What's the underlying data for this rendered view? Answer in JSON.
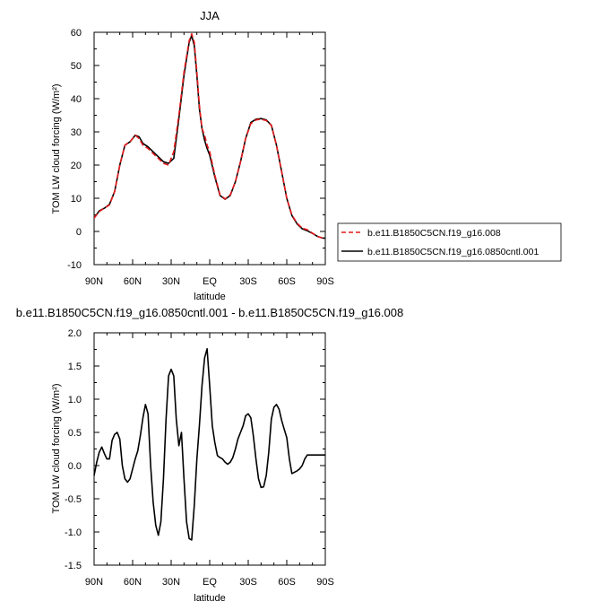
{
  "chart_data": [
    {
      "type": "line",
      "title": "JJA",
      "xlabel": "latitude",
      "ylabel": "TOM LW cloud forcing (W/m²)",
      "ylim": [
        -10,
        60
      ],
      "xlim": [
        90,
        -90
      ],
      "yticks": [
        "-10",
        "0",
        "10",
        "20",
        "30",
        "40",
        "50",
        "60"
      ],
      "xticks": [
        {
          "value": 90,
          "label": "90N"
        },
        {
          "value": 60,
          "label": "60N"
        },
        {
          "value": 30,
          "label": "30N"
        },
        {
          "value": 0,
          "label": "EQ"
        },
        {
          "value": -30,
          "label": "30S"
        },
        {
          "value": -60,
          "label": "60S"
        },
        {
          "value": -90,
          "label": "90S"
        }
      ],
      "legend_position": "right",
      "series": [
        {
          "name": "b.e11.B1850C5CN.f19_g16.008",
          "color": "#e41a1c",
          "dash": "dashed",
          "x": [
            90,
            86,
            82,
            78,
            74,
            70,
            66,
            62,
            58,
            55,
            52,
            48,
            44,
            40,
            36,
            32,
            28,
            24,
            20,
            16,
            14,
            12,
            10,
            8,
            6,
            4,
            2,
            0,
            -4,
            -8,
            -12,
            -16,
            -20,
            -24,
            -28,
            -32,
            -36,
            -40,
            -44,
            -48,
            -52,
            -56,
            -60,
            -64,
            -68,
            -72,
            -76,
            -80,
            -84,
            -88,
            -90
          ],
          "y": [
            4,
            6,
            7,
            8,
            12,
            20,
            26,
            27,
            29,
            28,
            26,
            25,
            23.5,
            22,
            20.5,
            20,
            24,
            35,
            48,
            57.5,
            59.5,
            57,
            48,
            38,
            31,
            29,
            26,
            24,
            17,
            11,
            9.8,
            11,
            15,
            21,
            28,
            32.5,
            33.6,
            33.8,
            33.4,
            32,
            26,
            18,
            10,
            5,
            2.5,
            1,
            0.5,
            -0.5,
            -1.5,
            -2,
            -2
          ]
        },
        {
          "name": "b.e11.B1850C5CN.f19_g16.0850cntl.001",
          "color": "#000000",
          "dash": "solid",
          "x": [
            90,
            86,
            82,
            78,
            74,
            70,
            66,
            62,
            58,
            55,
            52,
            48,
            44,
            40,
            36,
            32,
            28,
            24,
            20,
            16,
            14,
            12,
            10,
            8,
            6,
            4,
            2,
            0,
            -4,
            -8,
            -12,
            -16,
            -20,
            -24,
            -28,
            -32,
            -36,
            -40,
            -44,
            -48,
            -52,
            -56,
            -60,
            -64,
            -68,
            -72,
            -76,
            -80,
            -84,
            -88,
            -90
          ],
          "y": [
            4,
            6.2,
            7,
            8.2,
            12,
            20,
            26,
            27,
            29,
            28.5,
            26.5,
            25.5,
            24,
            22.5,
            21,
            20.5,
            22,
            34,
            47,
            57,
            59,
            56,
            47,
            37,
            31,
            27.5,
            25,
            23,
            16.5,
            10.8,
            9.7,
            10.8,
            15,
            21,
            28,
            32.8,
            33.8,
            34,
            33.6,
            32,
            26,
            18,
            10,
            4.8,
            2.3,
            0.8,
            0.2,
            -0.6,
            -1.5,
            -2,
            -2
          ]
        }
      ]
    },
    {
      "type": "line",
      "title": "b.e11.B1850C5CN.f19_g16.0850cntl.001 - b.e11.B1850C5CN.f19_g16.008",
      "xlabel": "latitude",
      "ylabel": "TOM LW cloud forcing (W/m²)",
      "ylim": [
        -1.5,
        2.0
      ],
      "xlim": [
        90,
        -90
      ],
      "yticks": [
        "-1.5",
        "-1.0",
        "-0.5",
        "0.0",
        "0.5",
        "1.0",
        "1.5",
        "2.0"
      ],
      "xticks": [
        {
          "value": 90,
          "label": "90N"
        },
        {
          "value": 60,
          "label": "60N"
        },
        {
          "value": 30,
          "label": "30N"
        },
        {
          "value": 0,
          "label": "EQ"
        },
        {
          "value": -30,
          "label": "30S"
        },
        {
          "value": -60,
          "label": "60S"
        },
        {
          "value": -90,
          "label": "90S"
        }
      ],
      "series": [
        {
          "color": "#000000",
          "dash": "solid",
          "x": [
            90,
            88,
            86,
            84,
            82,
            80,
            78,
            76,
            74,
            72,
            70,
            68,
            66,
            64,
            62,
            60,
            58,
            56,
            54,
            52,
            50,
            48,
            46,
            44,
            42,
            40,
            38,
            36,
            34,
            32,
            30,
            28,
            26,
            24,
            22,
            20,
            18,
            16,
            14,
            12,
            10,
            8,
            6,
            4,
            2,
            0,
            -2,
            -4,
            -6,
            -8,
            -10,
            -12,
            -14,
            -16,
            -18,
            -20,
            -22,
            -24,
            -26,
            -28,
            -30,
            -32,
            -34,
            -36,
            -38,
            -40,
            -42,
            -44,
            -46,
            -48,
            -50,
            -52,
            -54,
            -56,
            -58,
            -60,
            -62,
            -64,
            -66,
            -68,
            -70,
            -72,
            -74,
            -76,
            -78,
            -80,
            -82,
            -84,
            -86,
            -88,
            -90
          ],
          "y": [
            -0.15,
            0.05,
            0.2,
            0.28,
            0.18,
            0.1,
            0.1,
            0.38,
            0.47,
            0.5,
            0.4,
            0.0,
            -0.2,
            -0.25,
            -0.2,
            -0.05,
            0.1,
            0.22,
            0.45,
            0.72,
            0.92,
            0.78,
            0.0,
            -0.55,
            -0.9,
            -1.05,
            -0.85,
            -0.2,
            0.7,
            1.35,
            1.45,
            1.35,
            0.7,
            0.3,
            0.5,
            -0.2,
            -0.85,
            -1.1,
            -1.12,
            -0.6,
            0.1,
            0.6,
            1.2,
            1.62,
            1.76,
            1.2,
            0.6,
            0.35,
            0.15,
            0.12,
            0.1,
            0.05,
            0.02,
            0.05,
            0.12,
            0.25,
            0.4,
            0.5,
            0.6,
            0.75,
            0.78,
            0.72,
            0.45,
            0.1,
            -0.2,
            -0.33,
            -0.32,
            -0.15,
            0.2,
            0.7,
            0.88,
            0.92,
            0.85,
            0.68,
            0.55,
            0.42,
            0.1,
            -0.12,
            -0.1,
            -0.08,
            -0.05,
            0.0,
            0.1,
            0.16,
            0.16,
            0.16,
            0.16,
            0.16,
            0.16,
            0.16,
            0.16
          ]
        }
      ]
    }
  ]
}
